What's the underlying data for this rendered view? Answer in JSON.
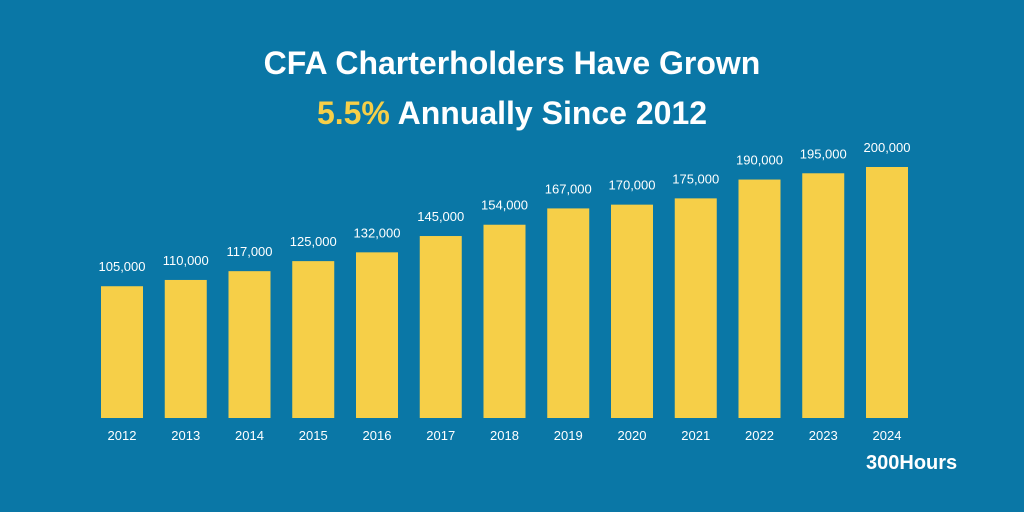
{
  "title": {
    "line1": "CFA Charterholders Have Grown",
    "line2_accent": "5.5%",
    "line2_rest": " Annually Since 2012"
  },
  "brand": "300Hours",
  "colors": {
    "background": "#0a77a6",
    "bar": "#f6cf48",
    "accent": "#f6cf48",
    "text": "#ffffff"
  },
  "chart_data": {
    "type": "bar",
    "categories": [
      "2012",
      "2013",
      "2014",
      "2015",
      "2016",
      "2017",
      "2018",
      "2019",
      "2020",
      "2021",
      "2022",
      "2023",
      "2024"
    ],
    "values": [
      105000,
      110000,
      117000,
      125000,
      132000,
      145000,
      154000,
      167000,
      170000,
      175000,
      190000,
      195000,
      200000
    ],
    "value_labels": [
      "105,000",
      "110,000",
      "117,000",
      "125,000",
      "132,000",
      "145,000",
      "154,000",
      "167,000",
      "170,000",
      "175,000",
      "190,000",
      "195,000",
      "200,000"
    ],
    "ylim": [
      0,
      200000
    ],
    "grid": false,
    "legend": "none"
  }
}
